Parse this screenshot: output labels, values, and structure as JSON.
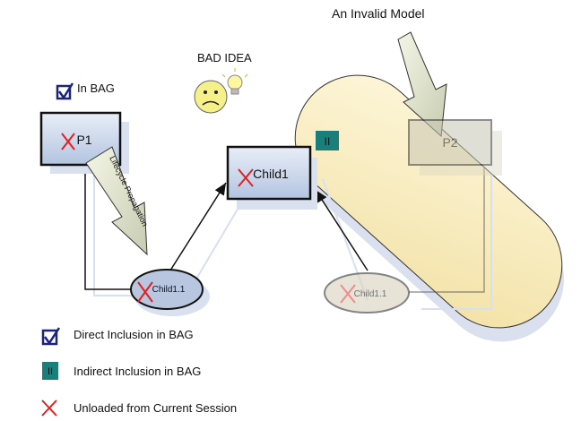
{
  "title": "An Invalid Model",
  "bad_idea": "BAD IDEA",
  "in_bag": "In BAG",
  "nodes": {
    "p1": "P1",
    "child1": "Child1",
    "child1_1": "Child1.1",
    "p2": "P2",
    "child1_1_ghost": "Child1.1"
  },
  "indirect_badge": "II",
  "arrow_label": "Lifecycle Propagation",
  "legend": {
    "direct": "Direct Inclusion in BAG",
    "indirect_symbol": "II",
    "indirect": "Indirect Inclusion in BAG",
    "unloaded": "Unloaded from Current Session"
  },
  "colors": {
    "box_fill": "#c9d6ea",
    "ellipse_fill": "#b8c6e0",
    "unloaded_x": "#e02020",
    "teal": "#1a7f7a",
    "capsule_fill": "#fbefc3",
    "shadow": "#d6dceb"
  },
  "icons": [
    "checkbox-icon",
    "sad-face-icon",
    "light-bulb-icon",
    "x-mark-icon"
  ]
}
